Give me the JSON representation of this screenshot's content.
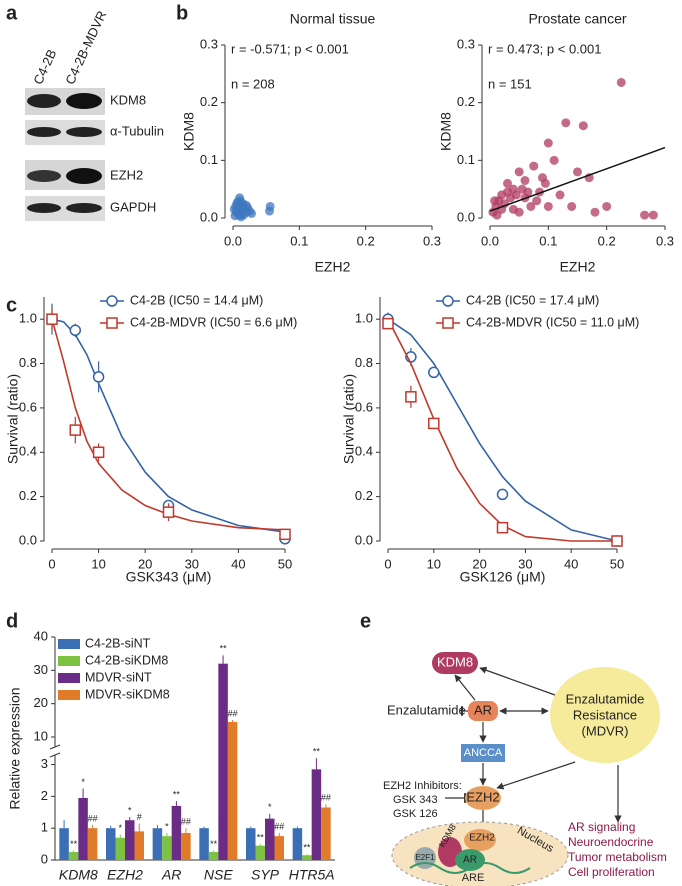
{
  "panel_labels": [
    "a",
    "b",
    "c",
    "d",
    "e"
  ],
  "panel_a": {
    "lanes": [
      "C4-2B",
      "C4-2B-MDVR"
    ],
    "bands": [
      "KDM8",
      "α-Tubulin",
      "EZH2",
      "GAPDH"
    ]
  },
  "chart_data": [
    {
      "type": "scatter",
      "title": "Normal tissue",
      "x_label": "EZH2",
      "y_label": "KDM8",
      "color": "#3f78c0",
      "annotations": [
        "r = -0.571; p < 0.001",
        "n = 208"
      ],
      "x": [
        0.002,
        0.004,
        0.005,
        0.006,
        0.008,
        0.009,
        0.01,
        0.011,
        0.012,
        0.013,
        0.014,
        0.015,
        0.016,
        0.018,
        0.02,
        0.022,
        0.025,
        0.028,
        0.003,
        0.007,
        0.01,
        0.015,
        0.02,
        0.012,
        0.006,
        0.055,
        0.056
      ],
      "values": [
        0.015,
        0.02,
        0.01,
        0.025,
        0.018,
        0.005,
        0.012,
        0.03,
        0.022,
        0.008,
        0.016,
        0.02,
        0.005,
        0.014,
        0.01,
        0.018,
        0.012,
        0.008,
        0.004,
        0.028,
        0.035,
        0.025,
        0.022,
        0.002,
        0.012,
        0.012,
        0.02
      ],
      "xlim": [
        0,
        0.3
      ],
      "ylim": [
        0,
        0.3
      ],
      "xticks": [
        {
          "value": 0,
          "label": "0.0"
        },
        0.1,
        0.2,
        0.3
      ],
      "yticks": [
        {
          "value": 0,
          "label": "0.0"
        },
        0.1,
        0.2,
        0.3
      ]
    },
    {
      "type": "scatter",
      "title": "Prostate cancer",
      "x_label": "EZH2",
      "y_label": "KDM8",
      "color": "#b03a62",
      "annotations": [
        "r = 0.473; p < 0.001",
        "n = 151"
      ],
      "x": [
        0.225,
        0.16,
        0.13,
        0.1,
        0.09,
        0.075,
        0.06,
        0.05,
        0.04,
        0.03,
        0.02,
        0.01,
        0.005,
        0.015,
        0.025,
        0.035,
        0.045,
        0.055,
        0.065,
        0.08,
        0.095,
        0.11,
        0.12,
        0.14,
        0.17,
        0.2,
        0.265,
        0.28,
        0.18,
        0.15,
        0.07,
        0.04,
        0.03,
        0.02,
        0.012,
        0.008,
        0.05,
        0.06,
        0.1,
        0.085
      ],
      "values": [
        0.235,
        0.16,
        0.165,
        0.13,
        0.07,
        0.09,
        0.065,
        0.08,
        0.05,
        0.06,
        0.04,
        0.02,
        0.01,
        0.03,
        0.025,
        0.035,
        0.04,
        0.05,
        0.045,
        0.03,
        0.06,
        0.1,
        0.04,
        0.02,
        0.07,
        0.02,
        0.005,
        0.005,
        0.01,
        0.08,
        0.02,
        0.015,
        0.045,
        0.015,
        0.005,
        0.03,
        0.01,
        0.035,
        0.02,
        0.045
      ],
      "trendline": {
        "x": [
          0,
          0.3
        ],
        "values": [
          0.012,
          0.122
        ]
      },
      "xlim": [
        0,
        0.3
      ],
      "ylim": [
        0,
        0.3
      ],
      "xticks": [
        {
          "value": 0,
          "label": "0.0"
        },
        0.1,
        0.2,
        0.3
      ],
      "yticks": [
        {
          "value": 0,
          "label": "0.0"
        },
        0.1,
        0.2,
        0.3
      ]
    },
    {
      "type": "line",
      "x_label": "GSK343 (μM)",
      "y_label": "Survival (ratio)",
      "x": [
        0,
        5,
        10,
        25,
        50
      ],
      "series": [
        {
          "name": "C4-2B (IC50 = 14.4 μM)",
          "color": "#3563a8",
          "marker": "circle",
          "values": [
            1.0,
            0.95,
            0.74,
            0.16,
            0.01
          ],
          "errors": [
            0.07,
            0.03,
            0.07,
            0.02,
            0.02
          ],
          "fit": {
            "x": [
              0,
              2.5,
              5,
              7.5,
              10,
              15,
              20,
              25,
              30,
              40,
              50
            ],
            "values": [
              1,
              0.988,
              0.93,
              0.84,
              0.71,
              0.47,
              0.31,
              0.2,
              0.14,
              0.07,
              0.04
            ]
          }
        },
        {
          "name": "C4-2B-MDVR (IC50 = 6.6 μM)",
          "color": "#c0392b",
          "marker": "square",
          "values": [
            1.0,
            0.5,
            0.4,
            0.13,
            0.03
          ],
          "errors": [
            0.05,
            0.06,
            0.04,
            0.04,
            0.01
          ],
          "fit": {
            "x": [
              0,
              2.5,
              5,
              7.5,
              10,
              15,
              20,
              25,
              30,
              40,
              50
            ],
            "values": [
              1,
              0.81,
              0.6,
              0.45,
              0.35,
              0.23,
              0.16,
              0.12,
              0.09,
              0.06,
              0.05
            ]
          }
        }
      ],
      "xlim": [
        0,
        50
      ],
      "ylim": [
        0,
        1.1
      ],
      "xticks": [
        0,
        10,
        20,
        30,
        40,
        50
      ],
      "yticks": [
        {
          "value": 0,
          "label": "0.0"
        },
        0.2,
        0.4,
        0.6,
        0.8,
        {
          "value": 1,
          "label": "1.0"
        }
      ]
    },
    {
      "type": "line",
      "x_label": "GSK126 (μM)",
      "y_label": "Survival (ratio)",
      "x": [
        0,
        5,
        10,
        25,
        50
      ],
      "series": [
        {
          "name": "C4-2B (IC50 = 17.4 μM)",
          "color": "#3563a8",
          "marker": "circle",
          "values": [
            1.0,
            0.83,
            0.76,
            0.21,
            0.0
          ],
          "errors": [
            0.03,
            0.04,
            0.02,
            0.02,
            0.02
          ],
          "fit": {
            "x": [
              0,
              5,
              10,
              15,
              20,
              25,
              30,
              40,
              50
            ],
            "values": [
              1,
              0.93,
              0.8,
              0.62,
              0.44,
              0.29,
              0.18,
              0.05,
              0
            ]
          }
        },
        {
          "name": "C4-2B-MDVR (IC50 = 11.0 μM)",
          "color": "#c0392b",
          "marker": "square",
          "values": [
            0.98,
            0.65,
            0.53,
            0.06,
            0.0
          ],
          "errors": [
            0.02,
            0.05,
            0.02,
            0.01,
            0.01
          ],
          "fit": {
            "x": [
              0,
              5,
              10,
              15,
              20,
              25,
              30,
              40,
              50
            ],
            "values": [
              1,
              0.8,
              0.55,
              0.33,
              0.17,
              0.07,
              0.02,
              0,
              0
            ]
          }
        }
      ],
      "xlim": [
        0,
        50
      ],
      "ylim": [
        0,
        1.1
      ],
      "xticks": [
        0,
        10,
        20,
        30,
        40,
        50
      ],
      "yticks": [
        {
          "value": 0,
          "label": "0.0"
        },
        0.2,
        0.4,
        0.6,
        0.8,
        {
          "value": 1,
          "label": "1.0"
        }
      ]
    },
    {
      "type": "bar",
      "y_label": "Relative expression",
      "categories": [
        "KDM8",
        "EZH2",
        "AR",
        "NSE",
        "SYP",
        "HTR5A"
      ],
      "series": [
        {
          "name": "C4-2B-siNT",
          "color": "#3a6fb5",
          "values": [
            1.0,
            1.0,
            1.0,
            1.0,
            1.0,
            1.0
          ],
          "errors": [
            0.25,
            0.08,
            0.1,
            0.05,
            0.05,
            0.05
          ],
          "annotations": [
            null,
            null,
            null,
            null,
            null,
            null
          ]
        },
        {
          "name": "C4-2B-siKDM8",
          "color": "#7dc242",
          "values": [
            0.25,
            0.7,
            0.75,
            0.25,
            0.45,
            0.15
          ],
          "errors": [
            0.05,
            0.1,
            0.1,
            0.05,
            0.05,
            0.03
          ],
          "annotations": [
            "**",
            "*",
            "*",
            "**",
            "**",
            "**"
          ]
        },
        {
          "name": "MDVR-siNT",
          "color": "#6b2c86",
          "values": [
            1.95,
            1.25,
            1.7,
            32,
            1.3,
            2.85
          ],
          "errors": [
            0.3,
            0.1,
            0.15,
            2.5,
            0.15,
            0.35
          ],
          "annotations": [
            "*",
            "*",
            "**",
            "**",
            "*",
            "**"
          ]
        },
        {
          "name": "MDVR-siKDM8",
          "color": "#e07b2a",
          "values": [
            1.0,
            0.9,
            0.85,
            14.5,
            0.75,
            1.65
          ],
          "errors": [
            0.1,
            0.25,
            0.15,
            0.6,
            0.1,
            0.1
          ],
          "annotations": [
            "##",
            "#",
            "##",
            "##",
            "##",
            "##"
          ]
        }
      ],
      "ylim": [
        0,
        40
      ],
      "ybreak": [
        3.3,
        7
      ],
      "yticks": [
        0,
        1,
        2,
        3,
        10,
        20,
        30,
        40
      ]
    }
  ],
  "panel_e": {
    "kdm8": "KDM8",
    "enzalutamide": "Enzalutamide",
    "ar": "AR",
    "resistance": [
      "Enzalutamide",
      "Resistance",
      "(MDVR)"
    ],
    "ancca": "ANCCA",
    "inhibitors": [
      "EZH2 Inhibitors:",
      "GSK 343",
      "GSK 126"
    ],
    "ezh2": "EZH2",
    "nucleus": "Nucleus",
    "complex": [
      "E2F1",
      "KDM8",
      "EZH2",
      "AR",
      "ARE"
    ],
    "outcomes": [
      "AR signaling",
      "Neuroendocrine",
      "Tumor metabolism",
      "Cell proliferation"
    ]
  }
}
